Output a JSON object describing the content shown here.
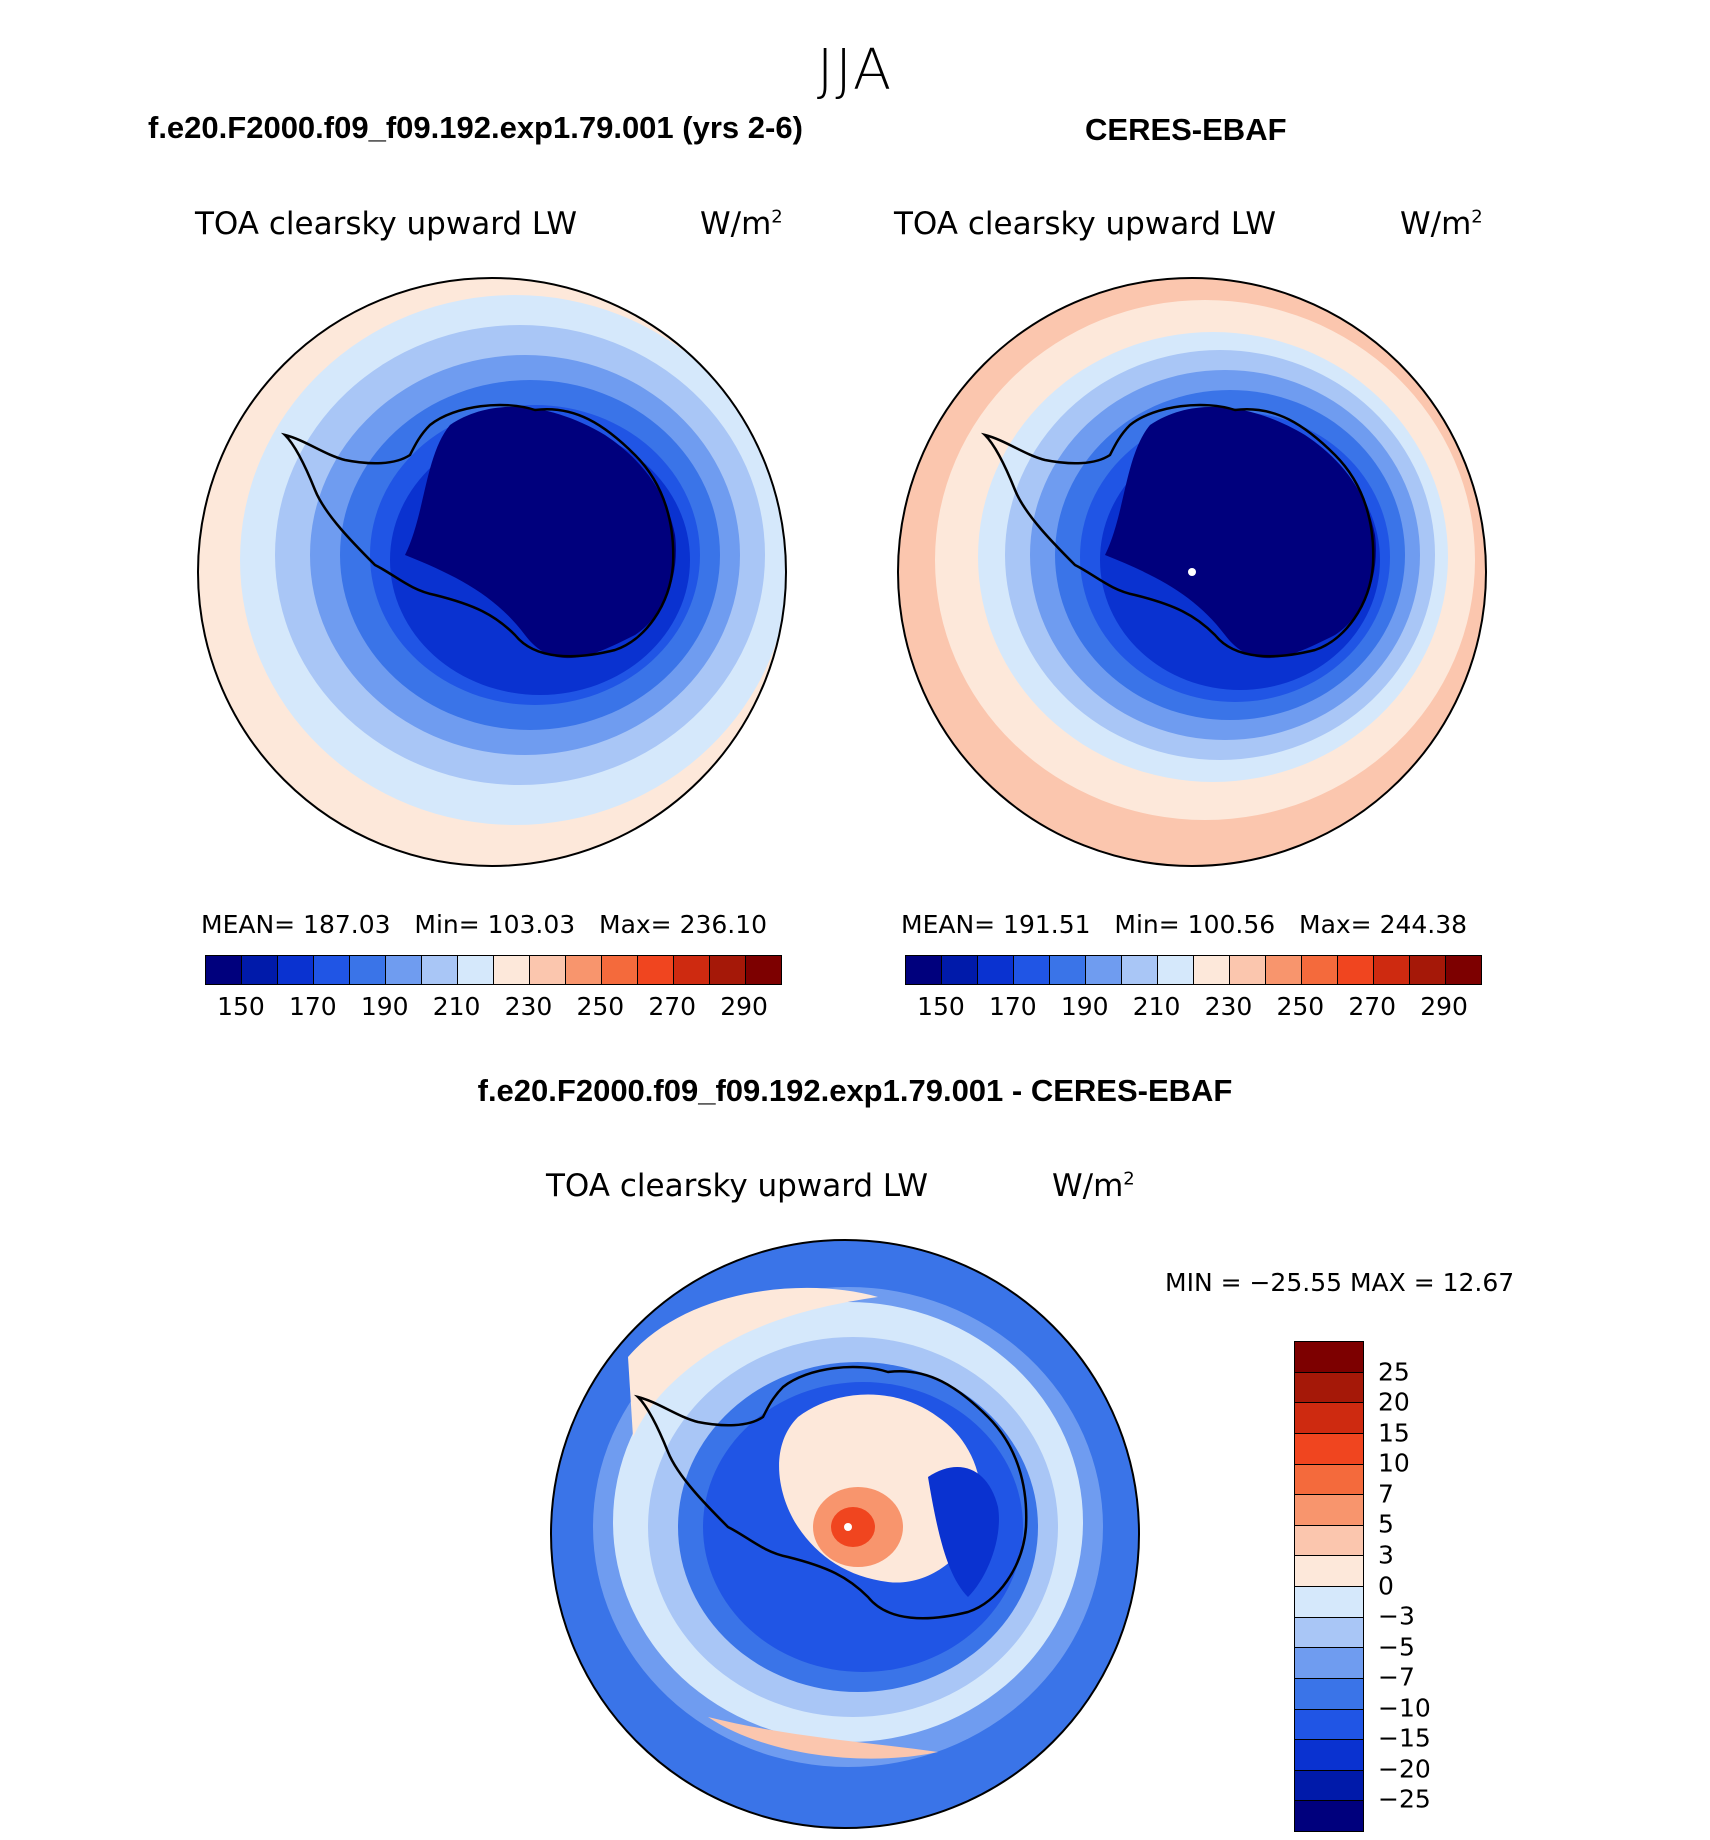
{
  "season": "JJA",
  "panels": [
    {
      "title": "f.e20.F2000.f09_f09.192.exp1.79.001 (yrs 2-6)",
      "var_title": "TOA clearsky upward LW",
      "units_base": "W/m",
      "units_exp": "2",
      "stats": {
        "mean_label": "MEAN=",
        "mean": "187.03",
        "min_label": "Min=",
        "min": "103.03",
        "max_label": "Max=",
        "max": "236.10"
      },
      "colorbar_ticks": [
        "150",
        "170",
        "190",
        "210",
        "230",
        "250",
        "270",
        "290"
      ]
    },
    {
      "title": "CERES-EBAF",
      "var_title": "TOA clearsky upward LW",
      "units_base": "W/m",
      "units_exp": "2",
      "stats": {
        "mean_label": "MEAN=",
        "mean": "191.51",
        "min_label": "Min=",
        "min": "100.56",
        "max_label": "Max=",
        "max": "244.38"
      },
      "colorbar_ticks": [
        "150",
        "170",
        "190",
        "210",
        "230",
        "250",
        "270",
        "290"
      ]
    }
  ],
  "diff": {
    "title": "f.e20.F2000.f09_f09.192.exp1.79.001 - CERES-EBAF",
    "var_title": "TOA clearsky upward LW",
    "units_base": "W/m",
    "units_exp": "2",
    "minmax": "MIN = −25.55 MAX =   12.67",
    "colorbar_ticks": [
      "25",
      "20",
      "15",
      "10",
      "7",
      "5",
      "3",
      "0",
      "−3",
      "−5",
      "−7",
      "−10",
      "−15",
      "−20",
      "−25"
    ]
  },
  "colors": {
    "abs_scale": [
      "#00007d",
      "#001aaa",
      "#0a32d0",
      "#2055e5",
      "#3a74e8",
      "#6f9cf0",
      "#a9c6f6",
      "#d5e8fb",
      "#fde8da",
      "#fbc6ae",
      "#f8956d",
      "#f46a3c",
      "#f0451f",
      "#ce2a10",
      "#a51808",
      "#7d0000"
    ],
    "diff_scale": [
      "#7d0000",
      "#a51808",
      "#ce2a10",
      "#f0451f",
      "#f46a3c",
      "#f8956d",
      "#fbc6ae",
      "#fde8da",
      "#d5e8fb",
      "#a9c6f6",
      "#6f9cf0",
      "#3a74e8",
      "#2055e5",
      "#0a32d0",
      "#001aaa",
      "#00007d"
    ],
    "outline": "#000000"
  }
}
